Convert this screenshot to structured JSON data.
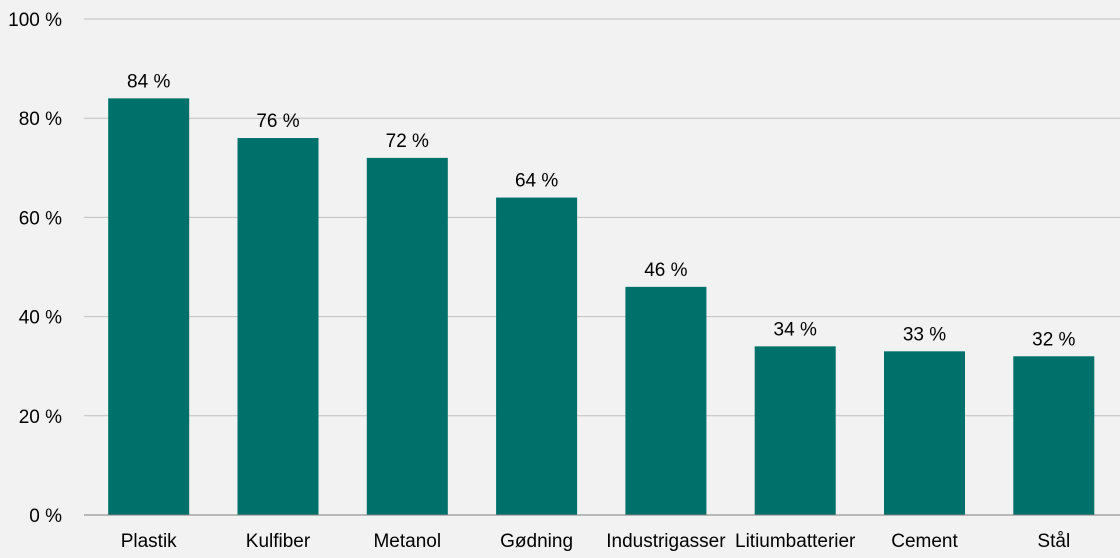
{
  "chart_data": {
    "type": "bar",
    "title": "",
    "xlabel": "",
    "ylabel": "",
    "categories": [
      "Plastik",
      "Kulfiber",
      "Metanol",
      "Gødning",
      "Industrigasser",
      "Litiumbatterier",
      "Cement",
      "Stål"
    ],
    "values": [
      84,
      76,
      72,
      64,
      46,
      34,
      33,
      32
    ],
    "data_labels": [
      "84 %",
      "76 %",
      "72 %",
      "64 %",
      "46 %",
      "34 %",
      "33 %",
      "32 %"
    ],
    "ylim": [
      0,
      100
    ],
    "yticks": [
      0,
      20,
      40,
      60,
      80,
      100
    ],
    "ytick_labels": [
      "0 %",
      "20 %",
      "40 %",
      "60 %",
      "80 %",
      "100 %"
    ],
    "grid": true,
    "legend": "none",
    "colors": {
      "bar": "#00706a",
      "background": "#f2f2f2",
      "grid": "#bfbfbf"
    }
  }
}
